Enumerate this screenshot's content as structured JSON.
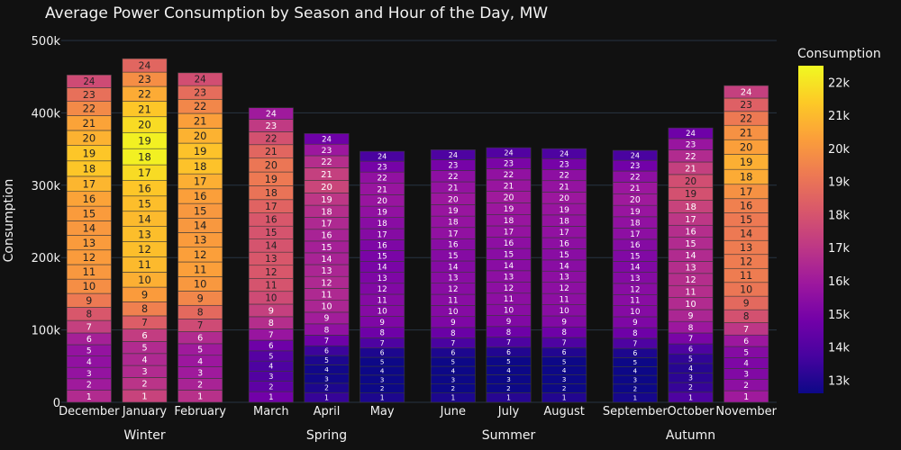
{
  "chart_data": {
    "type": "stacked-bar",
    "title": "Average Power Consumption by Season and Hour of the Day, MW",
    "ylabel": "Consumption",
    "yticks": [
      "0",
      "100k",
      "200k",
      "300k",
      "400k",
      "500k"
    ],
    "ylim": [
      0,
      500000
    ],
    "grid": true,
    "colorbar": {
      "title": "Consumption",
      "ticks": [
        "13k",
        "14k",
        "15k",
        "16k",
        "17k",
        "18k",
        "19k",
        "20k",
        "21k",
        "22k"
      ],
      "range": [
        12600,
        22500
      ],
      "placement": "right"
    },
    "seasons": [
      {
        "name": "Winter",
        "months": [
          {
            "name": "December",
            "hourly": [
              16600,
              16000,
              15700,
              15600,
              15700,
              16200,
              17300,
              18100,
              19200,
              19800,
              20100,
              20200,
              20200,
              20100,
              20200,
              20400,
              20900,
              21300,
              21300,
              20800,
              20400,
              19700,
              18900,
              17700
            ]
          },
          {
            "name": "January",
            "hourly": [
              17400,
              16900,
              16600,
              16500,
              16600,
              17200,
              18300,
              19400,
              20200,
              20700,
              21000,
              21100,
              21100,
              21000,
              21100,
              21300,
              21800,
              22300,
              22300,
              21800,
              21300,
              20600,
              19800,
              18600
            ]
          },
          {
            "name": "February",
            "hourly": [
              16800,
              16300,
              16000,
              15900,
              16000,
              16600,
              17700,
              18700,
              19600,
              20100,
              20300,
              20300,
              20200,
              20100,
              20100,
              20300,
              20700,
              21200,
              21200,
              20800,
              20300,
              19600,
              18800,
              17800
            ]
          }
        ]
      },
      {
        "name": "Spring",
        "months": [
          {
            "name": "March",
            "hourly": [
              14800,
              14300,
              14000,
              13900,
              14100,
              14700,
              15800,
              16700,
              17300,
              17700,
              18000,
              18100,
              18100,
              18000,
              18000,
              18100,
              18500,
              19000,
              19200,
              19100,
              18600,
              17900,
              17100,
              16000
            ]
          },
          {
            "name": "April",
            "hourly": [
              13400,
              12900,
              12700,
              12700,
              12900,
              13500,
              14700,
              15600,
              16100,
              16400,
              16500,
              16500,
              16400,
              16300,
              16200,
              16300,
              16500,
              16700,
              17000,
              17500,
              17300,
              16700,
              15900,
              14700
            ]
          },
          {
            "name": "May",
            "hourly": [
              12900,
              12400,
              12200,
              12200,
              12400,
              12900,
              13900,
              14700,
              15100,
              15300,
              15300,
              15200,
              15100,
              15000,
              15000,
              15100,
              15300,
              15400,
              15600,
              15800,
              15800,
              15600,
              14900,
              13800
            ]
          }
        ]
      },
      {
        "name": "Summer",
        "months": [
          {
            "name": "June",
            "hourly": [
              12900,
              12400,
              12200,
              12200,
              12400,
              12900,
              13800,
              14600,
              15100,
              15300,
              15400,
              15400,
              15400,
              15300,
              15300,
              15400,
              15600,
              15700,
              15800,
              15900,
              15700,
              15500,
              14900,
              13900
            ]
          },
          {
            "name": "July",
            "hourly": [
              13100,
              12600,
              12400,
              12400,
              12600,
              13000,
              13900,
              14700,
              15200,
              15400,
              15500,
              15500,
              15500,
              15400,
              15400,
              15500,
              15700,
              15800,
              15900,
              16000,
              15800,
              15600,
              15000,
              14000
            ]
          },
          {
            "name": "August",
            "hourly": [
              13000,
              12500,
              12300,
              12300,
              12500,
              13000,
              13900,
              14700,
              15200,
              15400,
              15500,
              15500,
              15500,
              15400,
              15400,
              15500,
              15600,
              15700,
              15800,
              15900,
              15700,
              15500,
              14900,
              13900
            ]
          }
        ]
      },
      {
        "name": "Autumn",
        "months": [
          {
            "name": "September",
            "hourly": [
              12800,
              12300,
              12100,
              12100,
              12300,
              12900,
              13900,
              14700,
              15100,
              15300,
              15400,
              15400,
              15300,
              15200,
              15200,
              15300,
              15500,
              15600,
              15800,
              16000,
              15900,
              15500,
              14800,
              13800
            ]
          },
          {
            "name": "October",
            "hourly": [
              13900,
              13400,
              13200,
              13100,
              13300,
              13900,
              15000,
              15900,
              16400,
              16600,
              16700,
              16700,
              16700,
              16600,
              16600,
              16700,
              17000,
              17400,
              17900,
              17800,
              17300,
              16600,
              15800,
              14700
            ]
          },
          {
            "name": "November",
            "hourly": [
              16000,
              15500,
              15200,
              15100,
              15300,
              15900,
              17000,
              17900,
              18700,
              19100,
              19300,
              19300,
              19300,
              19200,
              19200,
              19400,
              19900,
              20600,
              20700,
              20300,
              19900,
              19200,
              18400,
              17300
            ]
          }
        ]
      }
    ]
  }
}
